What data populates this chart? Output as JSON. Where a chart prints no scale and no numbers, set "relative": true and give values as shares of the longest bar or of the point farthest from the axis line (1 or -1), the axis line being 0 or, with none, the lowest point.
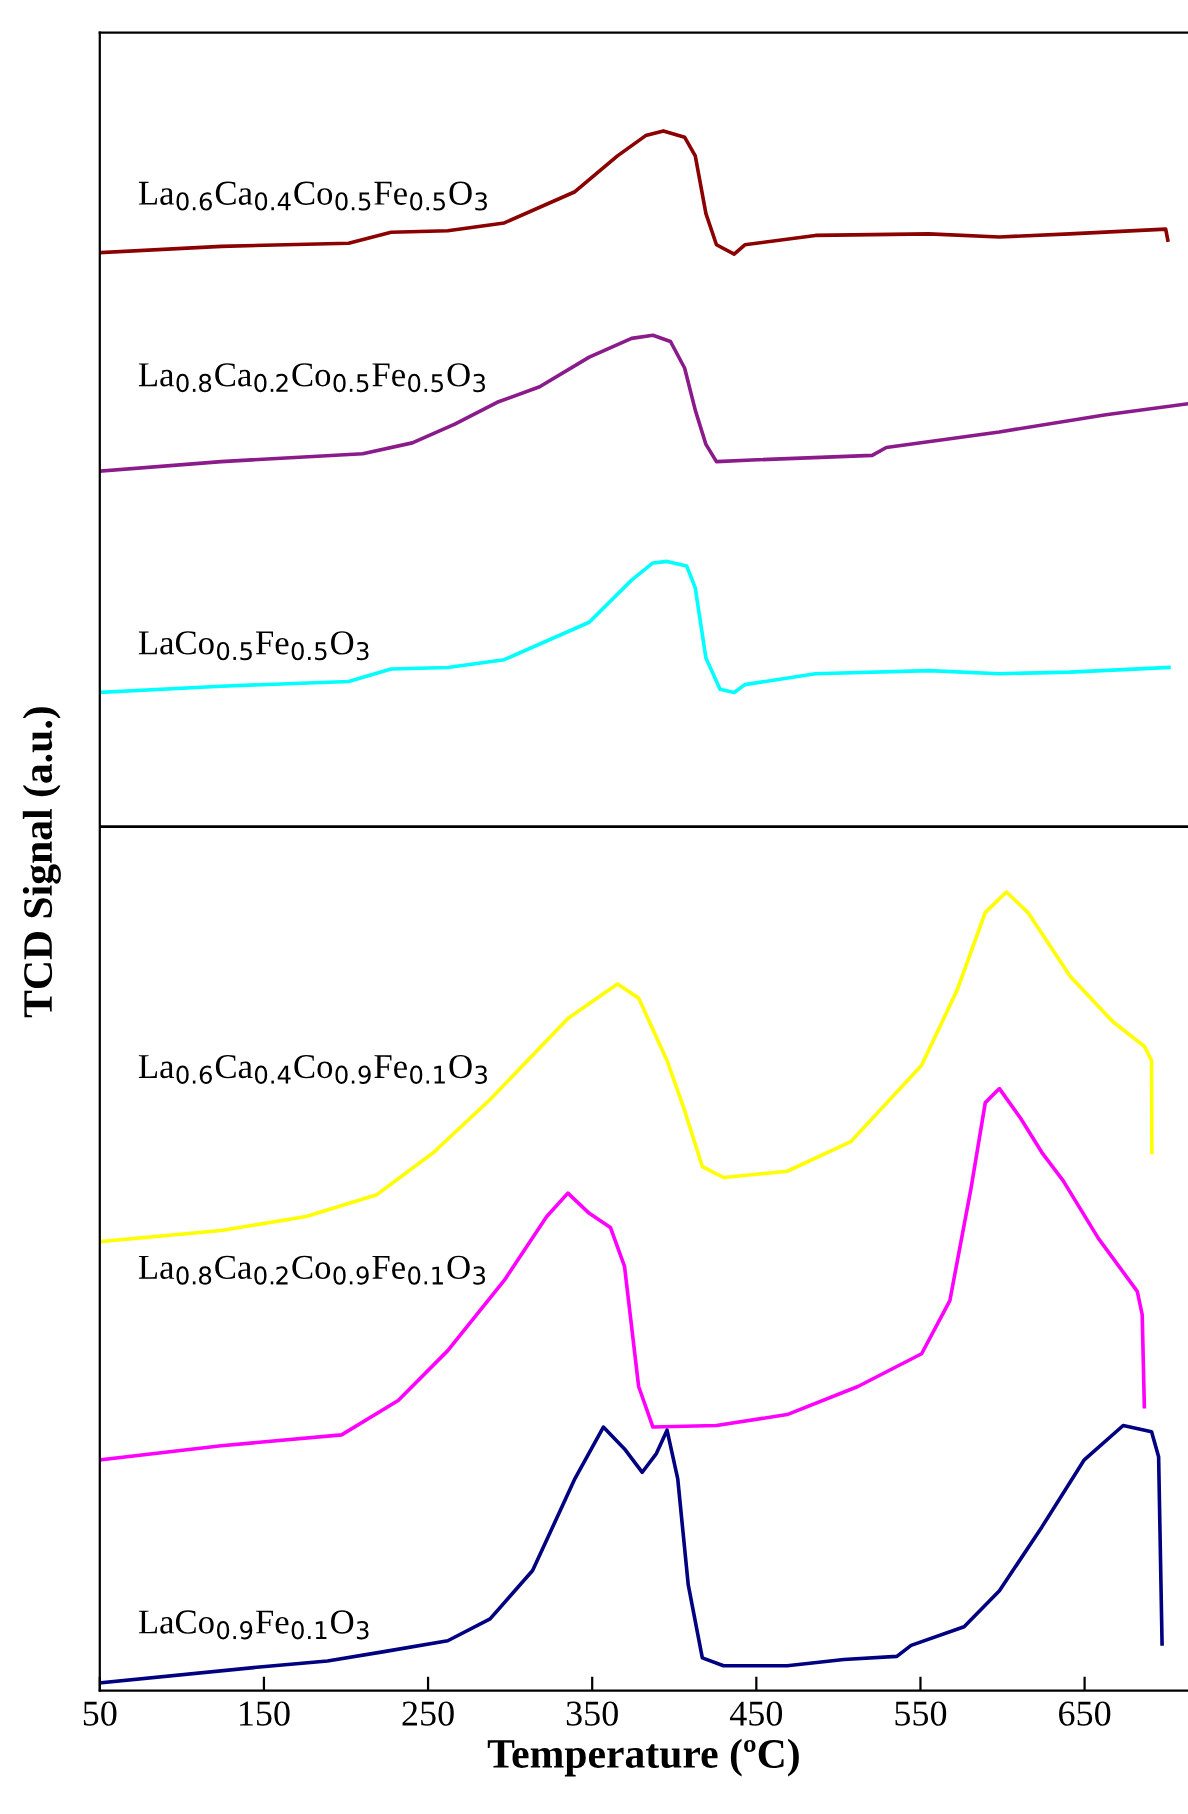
{
  "chart_data": {
    "type": "line",
    "xlabel": "Temperature (ºC)",
    "ylabel": "TCD Signal (a.u.)",
    "relative": true,
    "xlim": [
      50,
      713
    ],
    "xticks": [
      50,
      150,
      250,
      350,
      450,
      550,
      650
    ],
    "tick_labels": "x",
    "grid": false,
    "legend": false,
    "marker": "none",
    "line_style": "solid",
    "ref_lines": [
      {
        "axis": "y",
        "value": 0.554,
        "color": "#000000",
        "line_style": "solid"
      }
    ],
    "series": [
      {
        "name": "La$_{0.6}$Ca$_{0.4}$Co$_{0.5}$Fe$_{0.5}$O$_{3}$",
        "color": "#8b0000",
        "x": [
          50.7,
          124,
          201.6,
          227.5,
          262,
          296.4,
          339.5,
          365.4,
          382.6,
          393.4,
          406.3,
          412.8,
          419.3,
          425.7,
          436.5,
          443,
          486,
          555,
          598,
          641,
          699.4,
          700.7
        ],
        "values": [
          0.922,
          0.926,
          0.928,
          0.935,
          0.936,
          0.941,
          0.961,
          0.984,
          0.997,
          1.0,
          0.996,
          0.984,
          0.947,
          0.927,
          0.921,
          0.927,
          0.933,
          0.934,
          0.932,
          0.934,
          0.937,
          0.93
        ]
      },
      {
        "name": "La$_{0.8}$Ca$_{0.2}$Co$_{0.5}$Fe$_{0.5}$O$_{3}$",
        "color": "#8b1a8b",
        "x": [
          50.7,
          124,
          210.2,
          240.4,
          266.3,
          292.1,
          318,
          348.2,
          374,
          387,
          397.7,
          406.3,
          412.8,
          419.3,
          425.7,
          447.3,
          520.6,
          529.2,
          598,
          663,
          712.5
        ],
        "values": [
          0.782,
          0.788,
          0.793,
          0.8,
          0.812,
          0.826,
          0.836,
          0.855,
          0.867,
          0.869,
          0.865,
          0.848,
          0.821,
          0.799,
          0.788,
          0.789,
          0.792,
          0.797,
          0.807,
          0.818,
          0.825
        ]
      },
      {
        "name": "LaCo$_{0.5}$Fe$_{0.5}$O$_{3}$",
        "color": "#00ffff",
        "x": [
          50.7,
          124,
          201.6,
          227.5,
          262,
          296.4,
          348.2,
          374,
          387,
          395.6,
          407.6,
          412.8,
          419.3,
          427.9,
          436.5,
          443,
          486,
          555,
          598,
          641,
          701.4
        ],
        "values": [
          0.64,
          0.644,
          0.647,
          0.655,
          0.656,
          0.661,
          0.685,
          0.712,
          0.723,
          0.724,
          0.721,
          0.707,
          0.662,
          0.642,
          0.64,
          0.645,
          0.652,
          0.654,
          0.652,
          0.653,
          0.656
        ]
      },
      {
        "name": "La$_{0.6}$Ca$_{0.4}$Co$_{0.9}$Fe$_{0.1}$O$_{3}$",
        "color": "#ffff00",
        "x": [
          50.7,
          124,
          175.7,
          218.8,
          253.3,
          287.8,
          335.2,
          365.4,
          378.3,
          395.6,
          406.3,
          417.1,
          430,
          468.8,
          507.6,
          550.7,
          572.3,
          589.5,
          602.4,
          615.4,
          641.2,
          667.1,
          686.5,
          690.8,
          691
        ],
        "values": [
          0.288,
          0.295,
          0.304,
          0.318,
          0.345,
          0.379,
          0.431,
          0.453,
          0.444,
          0.404,
          0.372,
          0.336,
          0.329,
          0.333,
          0.352,
          0.401,
          0.449,
          0.499,
          0.512,
          0.499,
          0.458,
          0.429,
          0.413,
          0.404,
          0.345
        ]
      },
      {
        "name": "La$_{0.8}$Ca$_{0.2}$Co$_{0.9}$Fe$_{0.1}$O$_{3}$",
        "color": "#ff00ff",
        "x": [
          50.7,
          124,
          197.3,
          231.8,
          262,
          296.4,
          322.3,
          335.2,
          348.2,
          361.1,
          369.7,
          378.3,
          387,
          425.7,
          468.8,
          511.9,
          550.7,
          567.9,
          580.8,
          589.5,
          598.1,
          611,
          624,
          636.9,
          658.4,
          682.1,
          685.1,
          686.4
        ],
        "values": [
          0.148,
          0.157,
          0.164,
          0.186,
          0.218,
          0.263,
          0.304,
          0.319,
          0.306,
          0.297,
          0.272,
          0.195,
          0.169,
          0.17,
          0.177,
          0.195,
          0.216,
          0.25,
          0.322,
          0.377,
          0.386,
          0.367,
          0.345,
          0.327,
          0.29,
          0.256,
          0.241,
          0.182
        ]
      },
      {
        "name": "LaCo$_{0.9}$Fe$_{0.1}$O$_{3}$",
        "color": "#000080",
        "x": [
          50.7,
          145.6,
          188.7,
          223.2,
          262,
          287.8,
          313.7,
          339.5,
          356.8,
          369.7,
          380.5,
          389.1,
          395.6,
          402.1,
          408.5,
          417.1,
          430,
          468.8,
          503.3,
          535.6,
          544.3,
          576.6,
          598.1,
          624,
          649.8,
          673.5,
          690.8,
          695.1,
          697.2
        ],
        "values": [
          0.005,
          0.015,
          0.019,
          0.025,
          0.032,
          0.046,
          0.077,
          0.136,
          0.169,
          0.155,
          0.14,
          0.152,
          0.167,
          0.136,
          0.068,
          0.021,
          0.016,
          0.016,
          0.02,
          0.022,
          0.029,
          0.041,
          0.064,
          0.105,
          0.148,
          0.17,
          0.166,
          0.15,
          0.03
        ]
      }
    ]
  }
}
